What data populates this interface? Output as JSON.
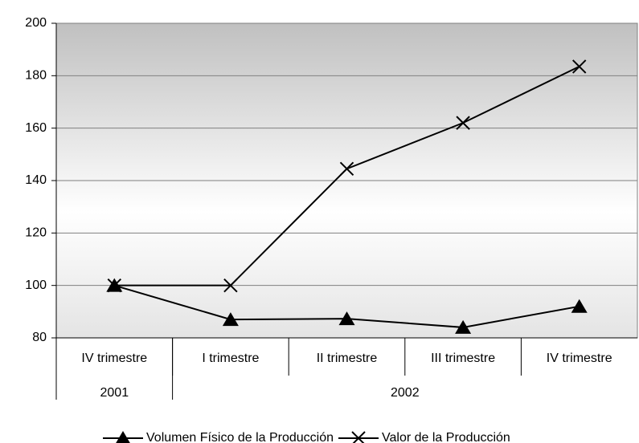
{
  "chart_data": {
    "type": "line",
    "categories": [
      "IV trimestre",
      "I trimestre",
      "II trimestre",
      "III trimestre",
      "IV trimestre"
    ],
    "groups": [
      {
        "name": "2001",
        "count": 1
      },
      {
        "name": "2002",
        "count": 4
      }
    ],
    "series": [
      {
        "name": "Volumen Físico de la Producción",
        "color": "#000000",
        "marker": "triangle",
        "values": [
          100,
          87,
          87.3,
          84,
          92
        ]
      },
      {
        "name": "Valor de la Producción",
        "color": "#000000",
        "marker": "x",
        "values": [
          100,
          100,
          144.5,
          162,
          183.5
        ]
      }
    ],
    "ylim": [
      80,
      200
    ],
    "yticks": [
      80,
      100,
      120,
      140,
      160,
      180,
      200
    ],
    "grid": true,
    "legend": "bottom"
  }
}
